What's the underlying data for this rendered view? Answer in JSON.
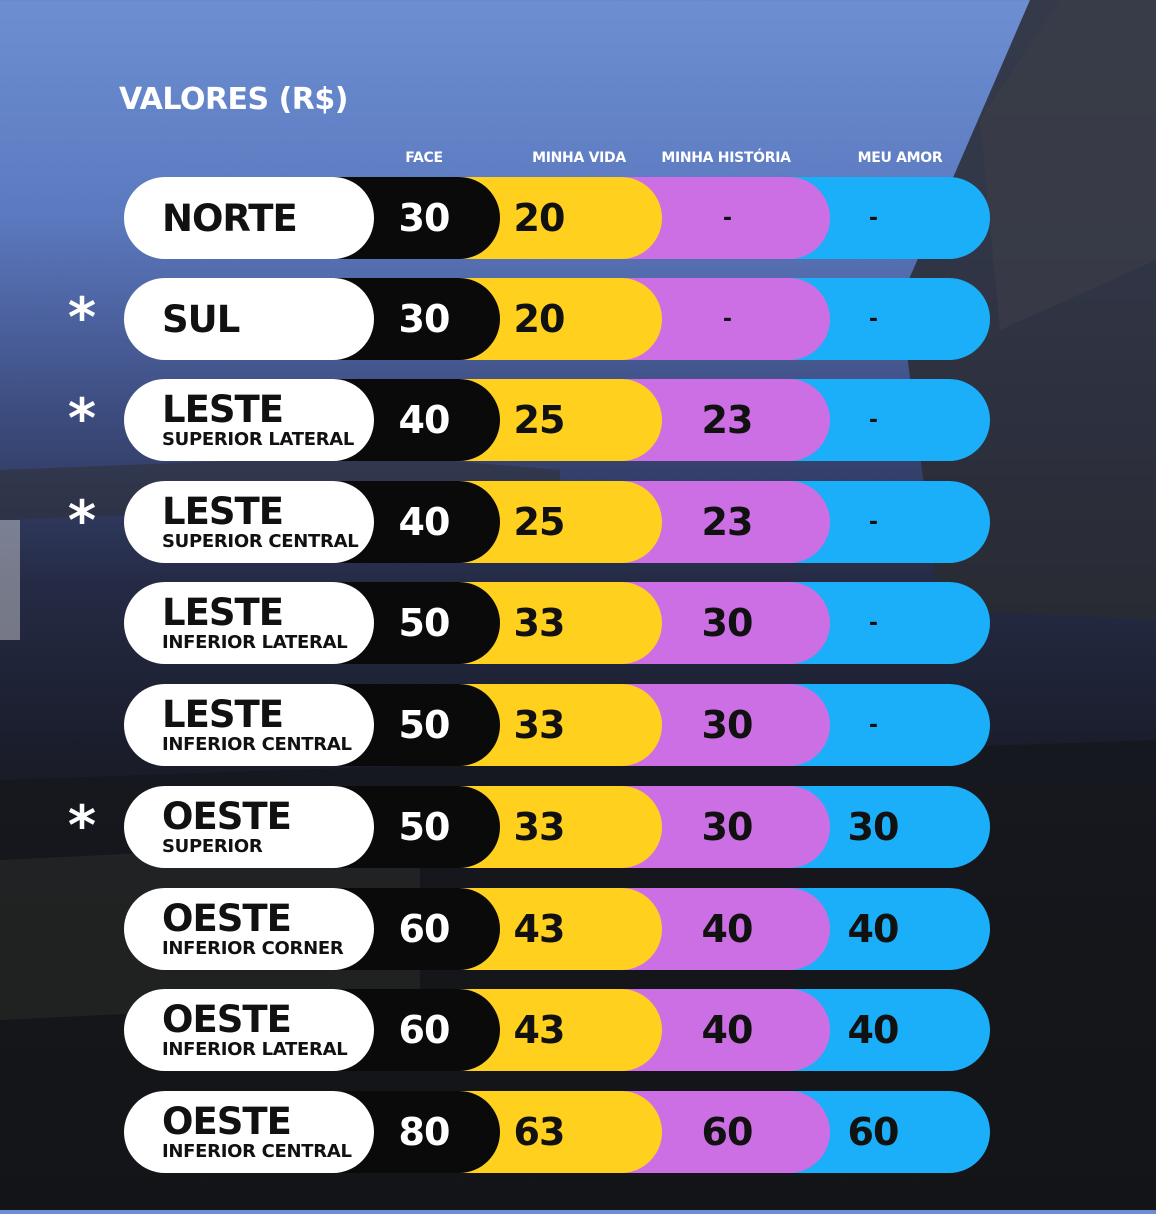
{
  "title": "VALORES (R$)",
  "colors": {
    "face": "#0a0a0a",
    "minha_vida": "#ffd01e",
    "minha_historia": "#cc6fe5",
    "meu_amor": "#1aaff8",
    "label": "#ffffff"
  },
  "headers": {
    "face": "FACE",
    "minha_vida": "MINHA VIDA",
    "minha_historia": "MINHA HISTÓRIA",
    "meu_amor": "MEU AMOR"
  },
  "rows": [
    {
      "name": "NORTE",
      "sub": "",
      "star": "",
      "face": "30",
      "minha_vida": "20",
      "minha_historia": "-",
      "meu_amor": "-"
    },
    {
      "name": "SUL",
      "sub": "",
      "star": "*",
      "face": "30",
      "minha_vida": "20",
      "minha_historia": "-",
      "meu_amor": "-"
    },
    {
      "name": "LESTE",
      "sub": "SUPERIOR LATERAL",
      "star": "*",
      "face": "40",
      "minha_vida": "25",
      "minha_historia": "23",
      "meu_amor": "-"
    },
    {
      "name": "LESTE",
      "sub": "SUPERIOR CENTRAL",
      "star": "*",
      "face": "40",
      "minha_vida": "25",
      "minha_historia": "23",
      "meu_amor": "-"
    },
    {
      "name": "LESTE",
      "sub": "INFERIOR LATERAL",
      "star": "",
      "face": "50",
      "minha_vida": "33",
      "minha_historia": "30",
      "meu_amor": "-"
    },
    {
      "name": "LESTE",
      "sub": "INFERIOR CENTRAL",
      "star": "",
      "face": "50",
      "minha_vida": "33",
      "minha_historia": "30",
      "meu_amor": "-"
    },
    {
      "name": "OESTE",
      "sub": "SUPERIOR",
      "star": "*",
      "face": "50",
      "minha_vida": "33",
      "minha_historia": "30",
      "meu_amor": "30"
    },
    {
      "name": "OESTE",
      "sub": "INFERIOR CORNER",
      "star": "",
      "face": "60",
      "minha_vida": "43",
      "minha_historia": "40",
      "meu_amor": "40"
    },
    {
      "name": "OESTE",
      "sub": "INFERIOR LATERAL",
      "star": "",
      "face": "60",
      "minha_vida": "43",
      "minha_historia": "40",
      "meu_amor": "40"
    },
    {
      "name": "OESTE",
      "sub": "INFERIOR CENTRAL",
      "star": "",
      "face": "80",
      "minha_vida": "63",
      "minha_historia": "60",
      "meu_amor": "60"
    }
  ]
}
